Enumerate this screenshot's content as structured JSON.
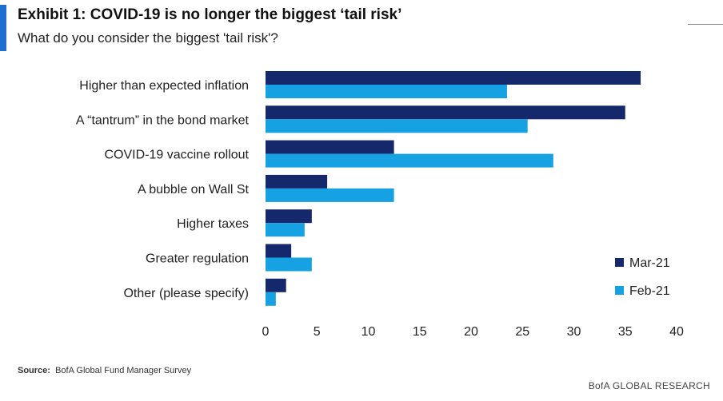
{
  "header": {
    "title": "Exhibit 1: COVID-19 is no longer the biggest ‘tail risk’",
    "subtitle": "What do you consider the biggest 'tail risk'?"
  },
  "source": {
    "label": "Source:",
    "text": "BofA Global Fund Manager Survey"
  },
  "footer": "BofA GLOBAL RESEARCH",
  "colors": {
    "mar21": "#14286b",
    "feb21": "#16a1e3",
    "accent": "#1f6fd0"
  },
  "chart_data": {
    "type": "bar",
    "orientation": "horizontal",
    "categories": [
      "Higher than expected inflation",
      "A “tantrum” in the bond market",
      "COVID-19 vaccine rollout",
      "A bubble on Wall St",
      "Higher taxes",
      "Greater regulation",
      "Other (please specify)"
    ],
    "series": [
      {
        "name": "Mar-21",
        "values": [
          36.5,
          35,
          12.5,
          6,
          4.5,
          2.5,
          2
        ]
      },
      {
        "name": "Feb-21",
        "values": [
          23.5,
          25.5,
          28,
          12.5,
          3.8,
          4.5,
          1
        ]
      }
    ],
    "xlim": [
      0,
      40
    ],
    "xticks": [
      0,
      5,
      10,
      15,
      20,
      25,
      30,
      35,
      40
    ],
    "legend": "bottom-right",
    "grid": false
  }
}
